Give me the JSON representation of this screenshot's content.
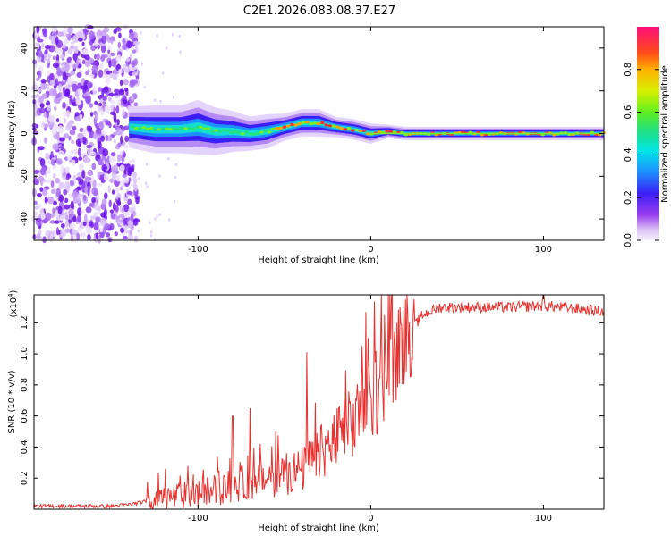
{
  "title": "C2E1.2026.083.08.37.E27",
  "chart_data": [
    {
      "type": "heatmap",
      "name": "spectrogram",
      "xlabel": "Height of straight line (km)",
      "ylabel": "Frequency (Hz)",
      "xlim": [
        -195,
        135
      ],
      "ylim": [
        -50,
        50
      ],
      "xticks": [
        -100,
        0,
        100
      ],
      "yticks": [
        -40,
        -20,
        0,
        20,
        40
      ],
      "colorbar": {
        "label": "Normalized spectral amplitude",
        "range": [
          0,
          1
        ],
        "ticks": [
          "0.0",
          "0.2",
          "0.4",
          "0.6",
          "0.8"
        ],
        "tick_values": [
          0,
          0.2,
          0.4,
          0.6,
          0.8
        ]
      },
      "noise_region_end_km": -135,
      "ridge": {
        "x": [
          -140,
          -125,
          -110,
          -100,
          -90,
          -80,
          -70,
          -60,
          -50,
          -40,
          -30,
          -20,
          -10,
          0,
          10,
          20,
          40,
          60,
          80,
          100,
          120,
          135
        ],
        "freq": [
          3,
          2,
          2,
          3,
          1,
          1,
          0,
          1,
          3,
          5,
          5,
          3,
          2,
          0,
          1,
          0,
          0,
          0,
          0,
          0,
          0,
          0
        ],
        "width": [
          6,
          7,
          7,
          8,
          7,
          6,
          5,
          5,
          4,
          4,
          4,
          3,
          3,
          3,
          2,
          2,
          2,
          2,
          2,
          2,
          2,
          2
        ]
      }
    },
    {
      "type": "line",
      "name": "snr",
      "xlabel": "Height of straight line (km)",
      "ylabel": "SNR (10 * v/v)",
      "yscale_label": "(x10",
      "yscale_exp": "4",
      "xlim": [
        -195,
        135
      ],
      "ylim": [
        0,
        1.38
      ],
      "xticks": [
        -100,
        0,
        100
      ],
      "yticks": [
        0.2,
        0.4,
        0.6,
        0.8,
        1.0,
        1.2
      ],
      "ytick_labels": [
        "0.2",
        "0.4",
        "0.6",
        "0.8",
        "1.0",
        "1.2"
      ],
      "series": [
        {
          "name": "SNR",
          "color": "#e8312e",
          "trend_x": [
            -195,
            -150,
            -140,
            -130,
            -120,
            -100,
            -80,
            -60,
            -40,
            -30,
            -20,
            -10,
            0,
            10,
            20,
            30,
            40,
            60,
            80,
            100,
            120,
            135
          ],
          "trend_y": [
            0.02,
            0.02,
            0.03,
            0.05,
            0.07,
            0.1,
            0.15,
            0.2,
            0.25,
            0.35,
            0.45,
            0.55,
            0.7,
            0.9,
            1.1,
            1.25,
            1.3,
            1.3,
            1.3,
            1.31,
            1.29,
            1.27
          ],
          "spikes_x": [
            -119,
            -80,
            -70,
            -55,
            -37,
            -5,
            8,
            15,
            20,
            25,
            100
          ],
          "spikes_y": [
            0.26,
            0.6,
            0.65,
            0.5,
            1.01,
            1.05,
            1.25,
            1.2,
            1.35,
            1.35,
            1.38
          ]
        }
      ]
    }
  ]
}
